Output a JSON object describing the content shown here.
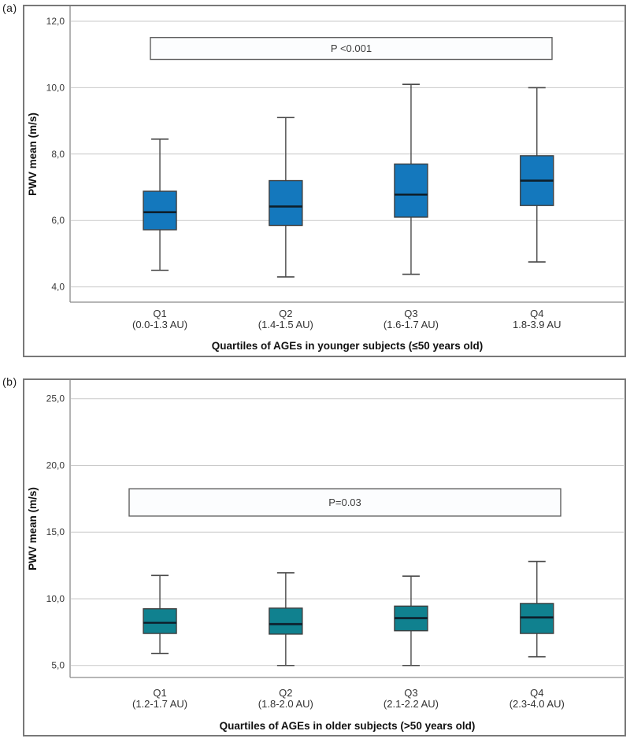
{
  "panels": [
    {
      "corner_label": "(a)"
    },
    {
      "corner_label": "(b)"
    }
  ],
  "colors": {
    "box_fill_a": "#1478bd",
    "box_fill_b": "#10818f",
    "median": "#0e1f2b",
    "box_stroke": "#3f3f3f",
    "whisker": "#4a4a4a",
    "grid": "#c9c9c9",
    "axis_frame": "#8a8a8a",
    "panel_border": "#787878",
    "annotation_border": "#5f5f5f",
    "annotation_fill": "#fcfdfe",
    "tick_text": "#3a3a3a",
    "label_text": "#333333",
    "title_text": "#111111",
    "annotation_text": "#3c3c3c"
  },
  "chart_data": [
    {
      "type": "boxplot",
      "panel": "(a)",
      "title": "",
      "ylabel": "PWV mean (m/s)",
      "xlabel": "Quartiles of AGEs in younger subjects (≤50 years old)",
      "annotation": "P <0.001",
      "annotation_span": {
        "y_top": 11.51,
        "y_bottom": 10.85
      },
      "grid": true,
      "legend": "none",
      "ylim": [
        3.54,
        12.45
      ],
      "yticks": [
        4,
        6,
        8,
        10,
        12
      ],
      "ytick_labels": [
        "4,0",
        "6,0",
        "8,0",
        "10,0",
        "12,0"
      ],
      "categories": [
        [
          "Q1",
          "(0.0-1.3 AU)"
        ],
        [
          "Q2",
          "(1.4-1.5 AU)"
        ],
        [
          "Q3",
          "(1.6-1.7 AU)"
        ],
        [
          "Q4",
          "1.8-3.9 AU"
        ]
      ],
      "series": [
        {
          "name": "Q1",
          "whisker_low": 4.5,
          "q1": 5.72,
          "median": 6.25,
          "q3": 6.88,
          "whisker_high": 8.45
        },
        {
          "name": "Q2",
          "whisker_low": 4.3,
          "q1": 5.85,
          "median": 6.42,
          "q3": 7.2,
          "whisker_high": 9.1
        },
        {
          "name": "Q3",
          "whisker_low": 4.38,
          "q1": 6.1,
          "median": 6.78,
          "q3": 7.7,
          "whisker_high": 10.1
        },
        {
          "name": "Q4",
          "whisker_low": 4.75,
          "q1": 6.45,
          "median": 7.2,
          "q3": 7.95,
          "whisker_high": 10.0
        }
      ]
    },
    {
      "type": "boxplot",
      "panel": "(b)",
      "title": "",
      "ylabel": "PWV mean (m/s)",
      "xlabel": "Quartiles of AGEs in older subjects (>50 years old)",
      "annotation": "P=0.03",
      "annotation_span": {
        "y_top": 18.25,
        "y_bottom": 16.2
      },
      "grid": true,
      "legend": "none",
      "ylim": [
        4.1,
        26.4
      ],
      "yticks": [
        5,
        10,
        15,
        20,
        25
      ],
      "ytick_labels": [
        "5,0",
        "10,0",
        "15,0",
        "20,0",
        "25,0"
      ],
      "categories": [
        [
          "Q1",
          "(1.2-1.7 AU)"
        ],
        [
          "Q2",
          "(1.8-2.0 AU)"
        ],
        [
          "Q3",
          "(2.1-2.2 AU)"
        ],
        [
          "Q4",
          "(2.3-4.0 AU)"
        ]
      ],
      "series": [
        {
          "name": "Q1",
          "whisker_low": 5.9,
          "q1": 7.4,
          "median": 8.2,
          "q3": 9.25,
          "whisker_high": 11.75
        },
        {
          "name": "Q2",
          "whisker_low": 5.0,
          "q1": 7.35,
          "median": 8.1,
          "q3": 9.3,
          "whisker_high": 11.95
        },
        {
          "name": "Q3",
          "whisker_low": 5.0,
          "q1": 7.6,
          "median": 8.55,
          "q3": 9.45,
          "whisker_high": 11.7
        },
        {
          "name": "Q4",
          "whisker_low": 5.65,
          "q1": 7.4,
          "median": 8.6,
          "q3": 9.65,
          "whisker_high": 12.8
        }
      ]
    }
  ]
}
